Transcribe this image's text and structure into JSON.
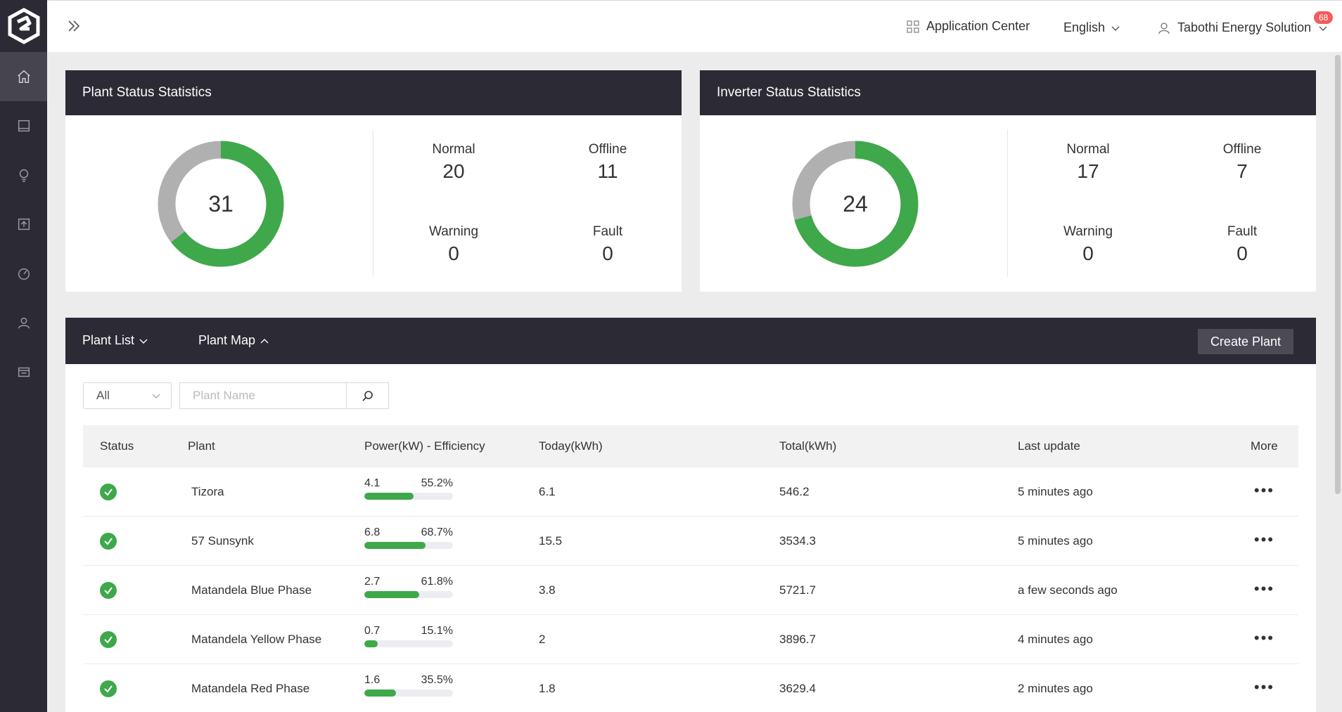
{
  "sidebar": {
    "items": [
      {
        "icon": "home-icon"
      },
      {
        "icon": "panel-icon"
      },
      {
        "icon": "lightbulb-icon"
      },
      {
        "icon": "upload-icon"
      },
      {
        "icon": "gauge-icon"
      },
      {
        "icon": "users-icon"
      },
      {
        "icon": "inventory-icon"
      }
    ]
  },
  "topbar": {
    "app_center": "Application Center",
    "language": "English",
    "user": "Tabothi Energy Solution",
    "notification_count": "68"
  },
  "plant_status": {
    "title": "Plant Status Statistics",
    "total": "31",
    "normal_label": "Normal",
    "normal": "20",
    "offline_label": "Offline",
    "offline": "11",
    "warning_label": "Warning",
    "warning": "0",
    "fault_label": "Fault",
    "fault": "0",
    "colors": {
      "normal": "#3ea84a",
      "offline": "#b0b0b0"
    }
  },
  "inverter_status": {
    "title": "Inverter Status Statistics",
    "total": "24",
    "normal_label": "Normal",
    "normal": "17",
    "offline_label": "Offline",
    "offline": "7",
    "warning_label": "Warning",
    "warning": "0",
    "fault_label": "Fault",
    "fault": "0"
  },
  "plant_panel": {
    "tab_list": "Plant List",
    "tab_map": "Plant Map",
    "create_button": "Create Plant",
    "filter_value": "All",
    "search_placeholder": "Plant Name",
    "columns": {
      "status": "Status",
      "plant": "Plant",
      "power": "Power(kW) - Efficiency",
      "today": "Today(kWh)",
      "total": "Total(kWh)",
      "last_update": "Last update",
      "more": "More"
    },
    "rows": [
      {
        "plant": "Tizora",
        "power": "4.1",
        "efficiency": "55.2%",
        "efficiency_value": 55.2,
        "today": "6.1",
        "total": "546.2",
        "last_update": "5 minutes ago"
      },
      {
        "plant": "57 Sunsynk",
        "power": "6.8",
        "efficiency": "68.7%",
        "efficiency_value": 68.7,
        "today": "15.5",
        "total": "3534.3",
        "last_update": "5 minutes ago"
      },
      {
        "plant": "Matandela Blue Phase",
        "power": "2.7",
        "efficiency": "61.8%",
        "efficiency_value": 61.8,
        "today": "3.8",
        "total": "5721.7",
        "last_update": "a few seconds ago"
      },
      {
        "plant": "Matandela Yellow Phase",
        "power": "0.7",
        "efficiency": "15.1%",
        "efficiency_value": 15.1,
        "today": "2",
        "total": "3896.7",
        "last_update": "4 minutes ago"
      },
      {
        "plant": "Matandela Red Phase",
        "power": "1.6",
        "efficiency": "35.5%",
        "efficiency_value": 35.5,
        "today": "1.8",
        "total": "3629.4",
        "last_update": "2 minutes ago"
      }
    ]
  }
}
